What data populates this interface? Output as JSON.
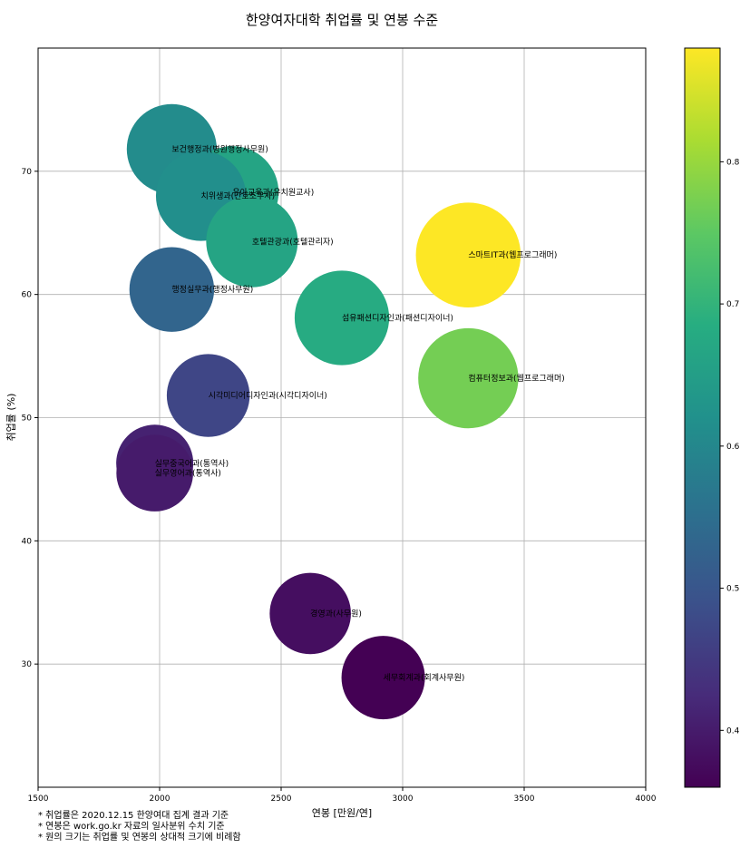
{
  "chart_data": {
    "type": "scatter",
    "title": "한양여자대학 취업률 및 연봉 수준",
    "xlabel": "연봉 [만원/연]",
    "ylabel": "취업률 (%)",
    "xlim": [
      1500,
      4000
    ],
    "ylim": [
      20,
      80
    ],
    "xticks": [
      1500,
      2000,
      2500,
      3000,
      3500,
      4000
    ],
    "yticks": [
      30,
      40,
      50,
      60,
      70
    ],
    "grid": true,
    "colormap": "viridis",
    "colorbar": {
      "range": [
        0.36,
        0.88
      ],
      "ticks": [
        "0.4",
        "0.5",
        "0.6",
        "0.7",
        "0.8"
      ]
    },
    "points": [
      {
        "label": "보건행정과(병원행정사무원)",
        "x": 2050,
        "y": 71.8,
        "c": 0.61
      },
      {
        "label": "유아교육과(유치원교사)",
        "x": 2300,
        "y": 68.3,
        "c": 0.665
      },
      {
        "label": "치위생과(간호조무사)",
        "x": 2170,
        "y": 68.0,
        "c": 0.615
      },
      {
        "label": "호텔관광과(호텔관리자)",
        "x": 2380,
        "y": 64.3,
        "c": 0.665
      },
      {
        "label": "스마트IT과(웹프로그래머)",
        "x": 3270,
        "y": 63.2,
        "c": 0.88
      },
      {
        "label": "행정실무과(행정사무원)",
        "x": 2050,
        "y": 60.4,
        "c": 0.53
      },
      {
        "label": "섬유패션디자인과(패션디자이너)",
        "x": 2750,
        "y": 58.1,
        "c": 0.68
      },
      {
        "label": "컴퓨터정보과(웹프로그래머)",
        "x": 3270,
        "y": 53.2,
        "c": 0.77
      },
      {
        "label": "시각미디어디자인과(시각디자이너)",
        "x": 2200,
        "y": 51.8,
        "c": 0.47
      },
      {
        "label": "실무중국어과(통역사)",
        "x": 1980,
        "y": 46.3,
        "c": 0.41
      },
      {
        "label": "실무영어과(통역사)",
        "x": 1980,
        "y": 45.5,
        "c": 0.4
      },
      {
        "label": "경영과(사무원)",
        "x": 2620,
        "y": 34.1,
        "c": 0.38
      },
      {
        "label": "세무회계과(회계사무원)",
        "x": 2920,
        "y": 28.9,
        "c": 0.36
      }
    ]
  },
  "notes": [
    "* 취업률은 2020.12.15 한양여대 집계 결과 기준",
    "* 연봉은 work.go.kr 자료의 일사분위 수치 기준",
    "* 원의 크기는 취업률 및 연봉의 상대적 크기에 비례함"
  ]
}
